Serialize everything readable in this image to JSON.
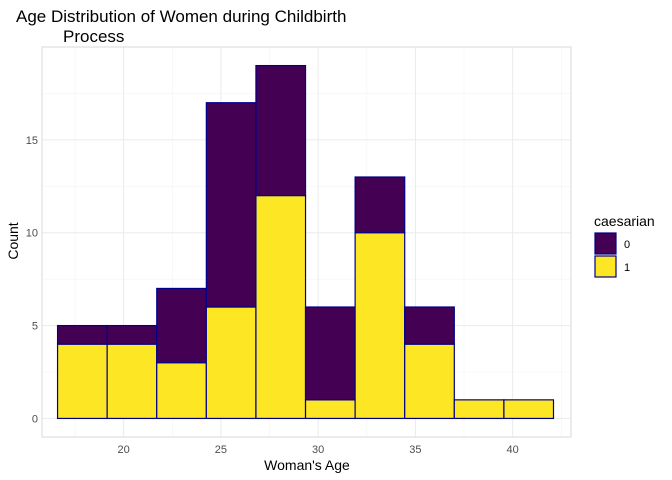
{
  "chart_data": {
    "type": "bar",
    "stacked": true,
    "title_lines": [
      "Age Distribution of Women during Childbirth",
      "Process"
    ],
    "xlabel": "Woman's Age",
    "ylabel": "Count",
    "xlim": [
      15.8,
      43
    ],
    "ylim": [
      -1,
      20
    ],
    "x_ticks": [
      20,
      25,
      30,
      35,
      40
    ],
    "y_ticks": [
      0,
      5,
      10,
      15
    ],
    "grid": true,
    "legend": {
      "title": "caesarian",
      "position": "right"
    },
    "bins": [
      {
        "x0": 16.6,
        "x1": 19.15,
        "values": {
          "0": 1,
          "1": 4
        }
      },
      {
        "x0": 19.15,
        "x1": 21.7,
        "values": {
          "0": 1,
          "1": 4
        }
      },
      {
        "x0": 21.7,
        "x1": 24.25,
        "values": {
          "0": 4,
          "1": 3
        }
      },
      {
        "x0": 24.25,
        "x1": 26.8,
        "values": {
          "0": 11,
          "1": 6
        }
      },
      {
        "x0": 26.8,
        "x1": 29.35,
        "values": {
          "0": 7,
          "1": 12
        }
      },
      {
        "x0": 29.35,
        "x1": 31.9,
        "values": {
          "0": 5,
          "1": 1
        }
      },
      {
        "x0": 31.9,
        "x1": 34.45,
        "values": {
          "0": 3,
          "1": 10
        }
      },
      {
        "x0": 34.45,
        "x1": 37.0,
        "values": {
          "0": 2,
          "1": 4
        }
      },
      {
        "x0": 37.0,
        "x1": 39.55,
        "values": {
          "0": 0,
          "1": 1
        }
      },
      {
        "x0": 39.55,
        "x1": 42.1,
        "values": {
          "0": 0,
          "1": 1
        }
      }
    ],
    "series": [
      {
        "name": "0",
        "color": "#440154"
      },
      {
        "name": "1",
        "color": "#FDE725"
      }
    ],
    "bar_outline_color": "#00008B"
  }
}
